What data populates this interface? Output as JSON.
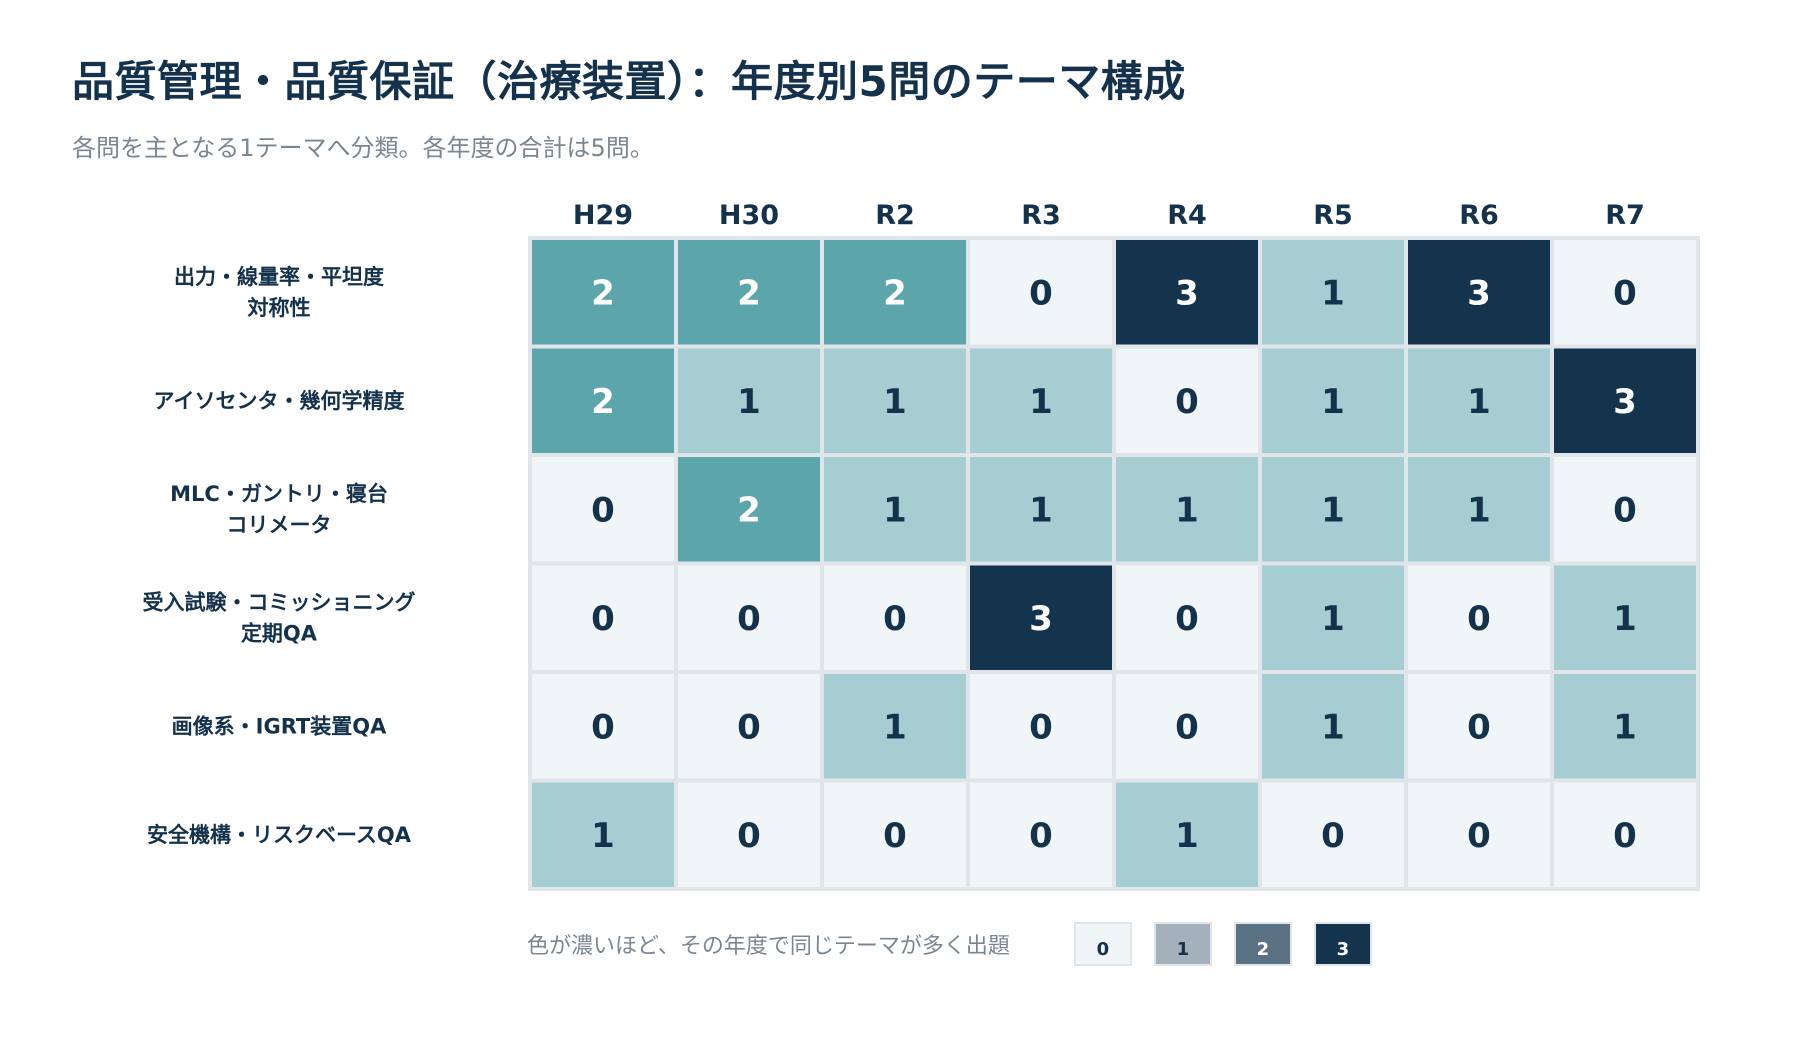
{
  "title": "品質管理・品質保証（治療装置）：年度別5問のテーマ構成",
  "subtitle": "各問を主となる1テーマへ分類。各年度の合計は5問。",
  "chart_data": {
    "type": "heatmap",
    "columns": [
      "H29",
      "H30",
      "R2",
      "R3",
      "R4",
      "R5",
      "R6",
      "R7"
    ],
    "rows": [
      {
        "label_lines": [
          "出力・線量率・平坦度",
          "対称性"
        ],
        "values": [
          2,
          2,
          2,
          0,
          3,
          1,
          3,
          0
        ]
      },
      {
        "label_lines": [
          "アイソセンタ・幾何学精度"
        ],
        "values": [
          2,
          1,
          1,
          1,
          0,
          1,
          1,
          3
        ]
      },
      {
        "label_lines": [
          "MLC・ガントリ・寝台",
          "コリメータ"
        ],
        "values": [
          0,
          2,
          1,
          1,
          1,
          1,
          1,
          0
        ]
      },
      {
        "label_lines": [
          "受入試験・コミッショニング",
          "定期QA"
        ],
        "values": [
          0,
          0,
          0,
          3,
          0,
          1,
          0,
          1
        ]
      },
      {
        "label_lines": [
          "画像系・IGRT装置QA"
        ],
        "values": [
          0,
          0,
          1,
          0,
          0,
          1,
          0,
          1
        ]
      },
      {
        "label_lines": [
          "安全機構・リスクベースQA"
        ],
        "values": [
          1,
          0,
          0,
          0,
          1,
          0,
          0,
          0
        ]
      }
    ],
    "value_range": [
      0,
      3
    ],
    "cell_colors": {
      "0": "#f0f5f7",
      "1": "#a6cdd1",
      "2": "#5ba5ab",
      "3": "#14334d"
    },
    "cell_text_colors": {
      "0": "#14324b",
      "1": "#14324b",
      "2": "#ffffff",
      "3": "#ffffff"
    }
  },
  "legend": {
    "text": "色が濃いほど、その年度で同じテーマが多く出題",
    "items": [
      {
        "label": "0",
        "color": "#f0f5f7",
        "text_color": "#14324b"
      },
      {
        "label": "1",
        "color": "#a5b1ba",
        "text_color": "#14324b"
      },
      {
        "label": "2",
        "color": "#5b7184",
        "text_color": "#ffffff"
      },
      {
        "label": "3",
        "color": "#14334d",
        "text_color": "#ffffff"
      }
    ]
  },
  "colors": {
    "title": "#14324b",
    "subtitle": "#7a8793",
    "grid_border": "#dfe5e9"
  }
}
